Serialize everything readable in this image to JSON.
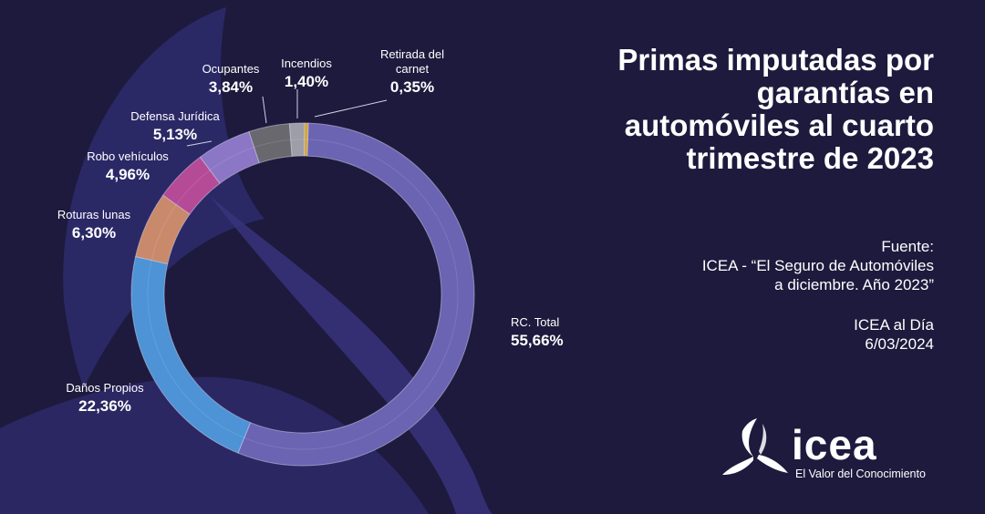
{
  "title_lines": [
    "Primas imputadas por",
    "garantías en",
    "automóviles al cuarto",
    "trimestre de 2023"
  ],
  "source": {
    "label": "Fuente:",
    "line1": "ICEA - “El Seguro de Automóviles",
    "line2": "a diciembre. Año 2023”"
  },
  "publication": {
    "name": "ICEA al Día",
    "date": "6/03/2024"
  },
  "brand": {
    "name": "icea",
    "tagline": "El Valor del Conocimiento"
  },
  "colors": {
    "background": "#1d1a3d",
    "text": "#ffffff"
  },
  "chart_data": {
    "type": "pie",
    "style": "donut",
    "categories": [
      "RC. Total",
      "Daños Propios",
      "Roturas lunas",
      "Robo vehículos",
      "Defensa  Jurídica",
      "Ocupantes",
      "Incendios",
      "Retirada del carnet"
    ],
    "values": [
      55.66,
      22.36,
      6.3,
      4.96,
      5.13,
      3.84,
      1.4,
      0.35
    ],
    "value_labels": [
      "55,66%",
      "22,36%",
      "6,30%",
      "4,96%",
      "5,13%",
      "3,84%",
      "1,40%",
      "0,35%"
    ],
    "colors": [
      "#6a64b2",
      "#4d93d6",
      "#c98a6c",
      "#b54a96",
      "#8c76c6",
      "#69686e",
      "#9e9ea8",
      "#d4a63a"
    ],
    "title": "",
    "legend": "none"
  }
}
